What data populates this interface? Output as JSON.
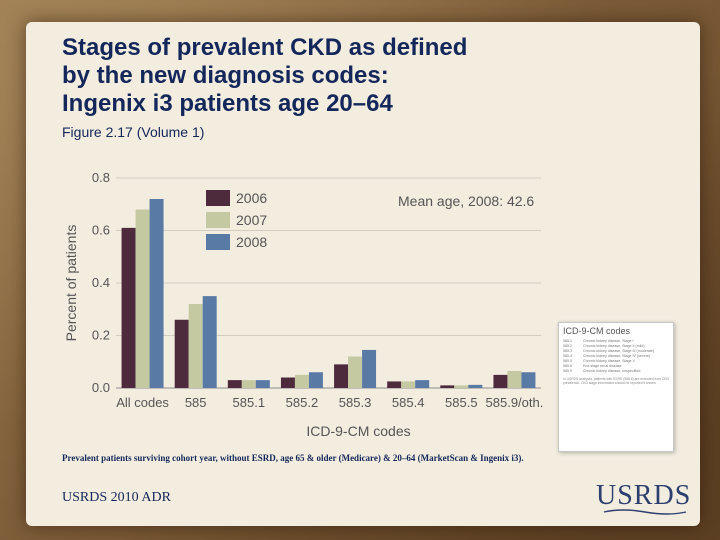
{
  "slide": {
    "title_lines": [
      "Stages of prevalent CKD as defined",
      "by the new diagnosis codes:",
      "Ingenix i3 patients age 20–64"
    ],
    "subtitle": "Figure 2.17 (Volume 1)",
    "footnote": "Prevalent patients surviving cohort year, without ESRD, age 65 & older (Medicare) & 20–64 (MarketScan & Ingenix i3).",
    "source": "USRDS 2010 ADR",
    "logo": "USRDS"
  },
  "chart_data": {
    "type": "bar",
    "title": "",
    "xlabel": "ICD-9-CM codes",
    "ylabel": "Percent of patients",
    "ylim": [
      0,
      0.8
    ],
    "yticks": [
      "0.0",
      "0.2",
      "0.4",
      "0.6",
      "0.8"
    ],
    "categories": [
      "All codes",
      "585",
      "585.1",
      "585.2",
      "585.3",
      "585.4",
      "585.5",
      "585.9/oth."
    ],
    "series": [
      {
        "name": "2006",
        "color": "#4e2a3d",
        "values": [
          0.61,
          0.26,
          0.03,
          0.04,
          0.09,
          0.025,
          0.01,
          0.05
        ]
      },
      {
        "name": "2007",
        "color": "#c5c9a2",
        "values": [
          0.68,
          0.32,
          0.03,
          0.05,
          0.12,
          0.025,
          0.01,
          0.065
        ]
      },
      {
        "name": "2008",
        "color": "#5a7aa6",
        "values": [
          0.72,
          0.35,
          0.03,
          0.06,
          0.145,
          0.03,
          0.012,
          0.06
        ]
      }
    ],
    "legend": [
      "2006",
      "2007",
      "2008"
    ],
    "annotation": "Mean age, 2008: 42.6"
  },
  "icd_table": {
    "title": "ICD-9-CM codes",
    "rows": [
      {
        "code": "585.1",
        "desc": "Chronic kidney disease, Stage I"
      },
      {
        "code": "585.2",
        "desc": "Chronic kidney disease, Stage II (mild)"
      },
      {
        "code": "585.3",
        "desc": "Chronic kidney disease, Stage III (moderate)"
      },
      {
        "code": "585.4",
        "desc": "Chronic kidney disease, Stage IV (severe)"
      },
      {
        "code": "585.5",
        "desc": "Chronic kidney disease, Stage V"
      },
      {
        "code": "585.6",
        "desc": "End stage renal disease"
      },
      {
        "code": "585.9",
        "desc": "Chronic kidney disease, unspecified"
      }
    ],
    "note": "In USRDS analyses, patients with ESRD (585.6) are excluded from CKD prevalence. CKD stage information should be reported if known."
  }
}
